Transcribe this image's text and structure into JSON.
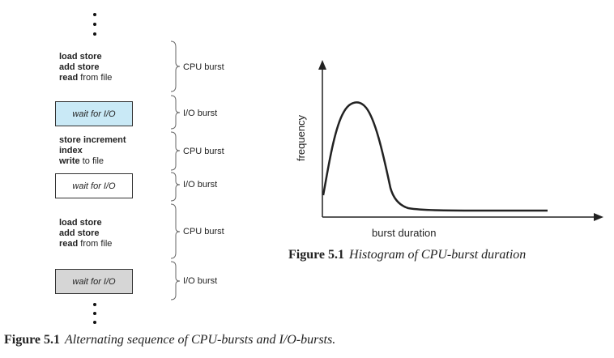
{
  "sequence": {
    "blocks": [
      {
        "type": "cpu",
        "lines": [
          [
            {
              "text": "load store",
              "bold": true
            }
          ],
          [
            {
              "text": "add store",
              "bold": true
            }
          ],
          [
            {
              "text": "read",
              "bold": true
            },
            {
              "text": " from file",
              "bold": false
            }
          ]
        ],
        "label": "CPU burst"
      },
      {
        "type": "io",
        "text": "wait for I/O",
        "fill": "#c9e9f6",
        "label": "I/O burst"
      },
      {
        "type": "cpu",
        "lines": [
          [
            {
              "text": "store increment",
              "bold": true
            }
          ],
          [
            {
              "text": "index",
              "bold": true
            }
          ],
          [
            {
              "text": "write",
              "bold": true
            },
            {
              "text": " to file",
              "bold": false
            }
          ]
        ],
        "label": "CPU burst"
      },
      {
        "type": "io",
        "text": "wait for I/O",
        "fill": "#ffffff",
        "label": "I/O burst"
      },
      {
        "type": "cpu",
        "lines": [
          [
            {
              "text": "load store",
              "bold": true
            }
          ],
          [
            {
              "text": "add store",
              "bold": true
            }
          ],
          [
            {
              "text": "read",
              "bold": true
            },
            {
              "text": " from file",
              "bold": false
            }
          ]
        ],
        "label": "CPU burst"
      },
      {
        "type": "io",
        "text": "wait for I/O",
        "fill": "#d6d6d6",
        "label": "I/O burst"
      }
    ]
  },
  "histogram": {
    "ylabel": "frequency",
    "xlabel": "burst duration"
  },
  "captions": {
    "histogram": {
      "number": "Figure 5.1",
      "text": "Histogram of CPU-burst duration"
    },
    "sequence": {
      "number": "Figure 5.1",
      "text": "Alternating sequence of CPU-bursts and I/O-bursts."
    }
  }
}
